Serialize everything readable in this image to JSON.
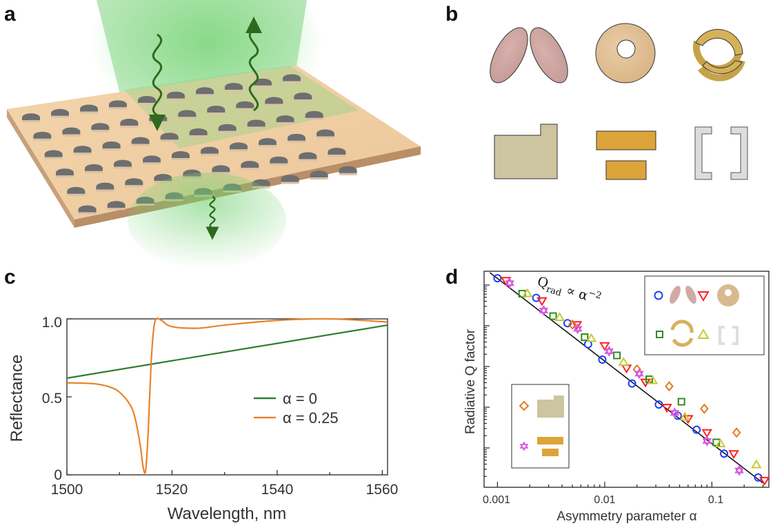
{
  "panels": {
    "a": "a",
    "b": "b",
    "c": "c",
    "d": "d"
  },
  "colors": {
    "green_line": "#2e7d2e",
    "orange_line": "#e8822a",
    "circle": "#1f3fff",
    "triangle_down": "#ff1f1f",
    "square": "#2e8b22",
    "triangle_up": "#c8c83a",
    "diamond": "#e27a1f",
    "star": "#d95ae0",
    "fit_line": "#111111"
  },
  "chart_data": [
    {
      "type": "line",
      "panel": "c",
      "xlabel": "Wavelength, nm",
      "ylabel": "Reflectance",
      "xlim": [
        1500,
        1561
      ],
      "ylim": [
        0,
        1.0
      ],
      "x_ticks": [
        "1500",
        "1520",
        "1540",
        "1560"
      ],
      "y_ticks": [
        "0",
        "0.5",
        "1.0"
      ],
      "legend": "center-right",
      "series": [
        {
          "name": "α = 0",
          "x": [
            1500,
            1561
          ],
          "y": [
            0.62,
            0.96
          ]
        },
        {
          "name": "α = 0.25",
          "x": [
            1500,
            1505,
            1508,
            1510,
            1512,
            1513,
            1514,
            1514.5,
            1515,
            1515.5,
            1516,
            1516.5,
            1517,
            1518,
            1520,
            1525,
            1530,
            1540,
            1550,
            1561
          ],
          "y": [
            0.59,
            0.585,
            0.565,
            0.53,
            0.45,
            0.36,
            0.18,
            0.05,
            0.03,
            0.3,
            0.7,
            0.93,
            1.0,
            0.99,
            0.95,
            0.94,
            0.96,
            0.99,
            1.0,
            0.98
          ]
        }
      ]
    },
    {
      "type": "scatter",
      "panel": "d",
      "xlabel": "Asymmetry parameter α",
      "ylabel": "Radiative Q factor",
      "x_scale": "log",
      "y_scale": "log",
      "xlim": [
        0.00075,
        0.34
      ],
      "x_ticks": [
        "0.001",
        "0.01",
        "0.1"
      ],
      "annotation": "Q",
      "annotation_sub": "rad",
      "annotation_rest": "∝ α",
      "annotation_sup": "−2",
      "legend": "top-right and lower-left insets",
      "series": [
        {
          "marker": "circle",
          "x": [
            0.001,
            0.0023,
            0.0045,
            0.007,
            0.0095,
            0.018,
            0.032,
            0.048,
            0.072,
            0.13,
            0.27
          ],
          "y": [
            1.0,
            0.86,
            0.68,
            0.53,
            0.42,
            0.25,
            0.1,
            0.02,
            -0.08,
            -0.25,
            -0.42
          ]
        },
        {
          "marker": "triangle-down",
          "x": [
            0.0012,
            0.0026,
            0.0055,
            0.01,
            0.016,
            0.024,
            0.038,
            0.06,
            0.09,
            0.16,
            0.31
          ],
          "y": [
            0.985,
            0.84,
            0.67,
            0.52,
            0.36,
            0.26,
            0.08,
            0.0,
            -0.1,
            -0.25,
            -0.44
          ]
        },
        {
          "marker": "square",
          "x": [
            0.0017,
            0.0033,
            0.0065,
            0.013,
            0.026,
            0.052,
            0.11
          ],
          "y": [
            0.89,
            0.73,
            0.58,
            0.45,
            0.28,
            0.12,
            -0.17
          ]
        },
        {
          "marker": "triangle-up",
          "x": [
            0.0019,
            0.0038,
            0.0075,
            0.015,
            0.028,
            0.056,
            0.12,
            0.26
          ],
          "y": [
            0.89,
            0.72,
            0.57,
            0.4,
            0.27,
            0.01,
            -0.18,
            -0.33
          ]
        },
        {
          "marker": "diamond",
          "x": [
            0.005,
            0.02,
            0.04,
            0.085,
            0.17
          ],
          "y": [
            0.67,
            0.35,
            0.23,
            0.07,
            -0.1
          ]
        },
        {
          "marker": "star",
          "x": [
            0.0013,
            0.0027,
            0.0056,
            0.011,
            0.021,
            0.045,
            0.09,
            0.18
          ],
          "y": [
            0.965,
            0.77,
            0.64,
            0.48,
            0.32,
            0.04,
            -0.16,
            -0.37
          ]
        }
      ]
    }
  ]
}
